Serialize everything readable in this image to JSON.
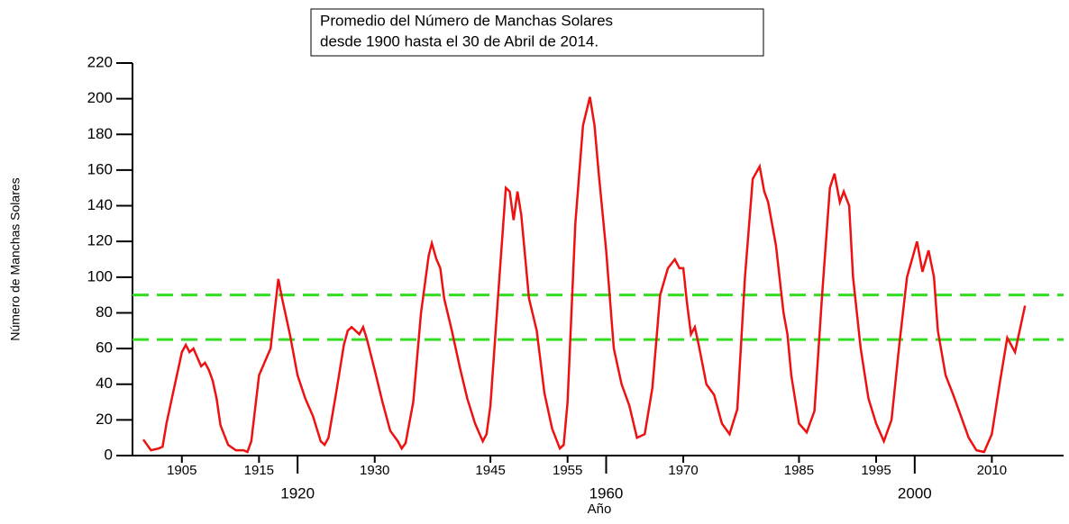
{
  "chart_data": {
    "type": "line",
    "title": [
      "Promedio del Número de Manchas Solares",
      "desde 1900 hasta el 30 de Abril de 2014."
    ],
    "xlabel": "Año",
    "ylabel": "Número de Manchas Solares",
    "xlim": [
      1898.6,
      2019.3
    ],
    "ylim": [
      0,
      220
    ],
    "yticks": [
      0,
      20,
      40,
      60,
      80,
      100,
      120,
      140,
      160,
      180,
      200,
      220
    ],
    "xticks": [
      1905,
      1915,
      1930,
      1945,
      1955,
      1970,
      1985,
      1995,
      2010
    ],
    "xticks_major": [
      1920,
      1960,
      2000
    ],
    "reference_lines": [
      {
        "value": 90,
        "color": "#33dd22"
      },
      {
        "value": 65,
        "color": "#33dd22"
      }
    ],
    "series": [
      {
        "name": "Manchas Solares",
        "color": "#ee1111",
        "x": [
          1900,
          1901,
          1902,
          1902.5,
          1903,
          1904,
          1905,
          1905.5,
          1906,
          1906.5,
          1907,
          1907.5,
          1908,
          1908.5,
          1909,
          1909.5,
          1910,
          1911,
          1912,
          1913,
          1913.5,
          1914,
          1915,
          1916,
          1916.5,
          1917,
          1917.5,
          1918,
          1918.5,
          1919,
          1920,
          1921,
          1922,
          1923,
          1923.5,
          1924,
          1925,
          1926,
          1926.5,
          1927,
          1928,
          1928.5,
          1929,
          1930,
          1931,
          1932,
          1933,
          1933.5,
          1934,
          1935,
          1936,
          1937,
          1937.4,
          1938,
          1938.5,
          1939,
          1940,
          1941,
          1942,
          1943,
          1944,
          1944.5,
          1945,
          1946,
          1947,
          1947.5,
          1948,
          1948.5,
          1949,
          1950,
          1951,
          1952,
          1953,
          1954,
          1954.5,
          1955,
          1956,
          1957,
          1957.9,
          1958.5,
          1959,
          1960,
          1961,
          1962,
          1963,
          1964,
          1965,
          1966,
          1967,
          1968,
          1968.9,
          1969.5,
          1970,
          1970.5,
          1971,
          1971.5,
          1972,
          1973,
          1974,
          1975,
          1976,
          1977,
          1978,
          1979,
          1979.9,
          1980.5,
          1981,
          1982,
          1983,
          1983.5,
          1984,
          1985,
          1986,
          1987,
          1988,
          1989,
          1989.6,
          1990.3,
          1990.8,
          1991.5,
          1992,
          1993,
          1994,
          1995,
          1996,
          1997,
          1998,
          1999,
          2000.3,
          2001,
          2001.8,
          2002.5,
          2003,
          2004,
          2005,
          2006,
          2007,
          2008,
          2009,
          2010,
          2011,
          2012,
          2012.5,
          2013,
          2014.3
        ],
        "values": [
          9,
          3,
          4,
          5,
          18,
          38,
          58,
          62,
          58,
          60,
          55,
          50,
          52,
          48,
          42,
          32,
          17,
          6,
          3,
          3,
          2,
          8,
          45,
          55,
          60,
          80,
          99,
          88,
          78,
          68,
          45,
          32,
          22,
          8,
          6,
          10,
          35,
          62,
          70,
          72,
          68,
          72,
          65,
          48,
          30,
          14,
          8,
          4,
          7,
          30,
          80,
          112,
          119,
          110,
          105,
          88,
          70,
          50,
          32,
          18,
          8,
          12,
          28,
          90,
          150,
          148,
          132,
          148,
          135,
          88,
          70,
          35,
          15,
          4,
          6,
          30,
          130,
          185,
          201,
          185,
          160,
          115,
          60,
          40,
          28,
          10,
          12,
          38,
          90,
          105,
          110,
          105,
          105,
          85,
          68,
          72,
          62,
          40,
          34,
          18,
          12,
          26,
          100,
          155,
          162,
          148,
          142,
          118,
          80,
          68,
          45,
          18,
          13,
          25,
          90,
          150,
          158,
          142,
          148,
          140,
          100,
          60,
          32,
          18,
          8,
          20,
          62,
          100,
          120,
          103,
          115,
          100,
          70,
          45,
          34,
          22,
          10,
          3,
          2,
          12,
          40,
          66,
          62,
          58,
          84
        ]
      }
    ]
  }
}
